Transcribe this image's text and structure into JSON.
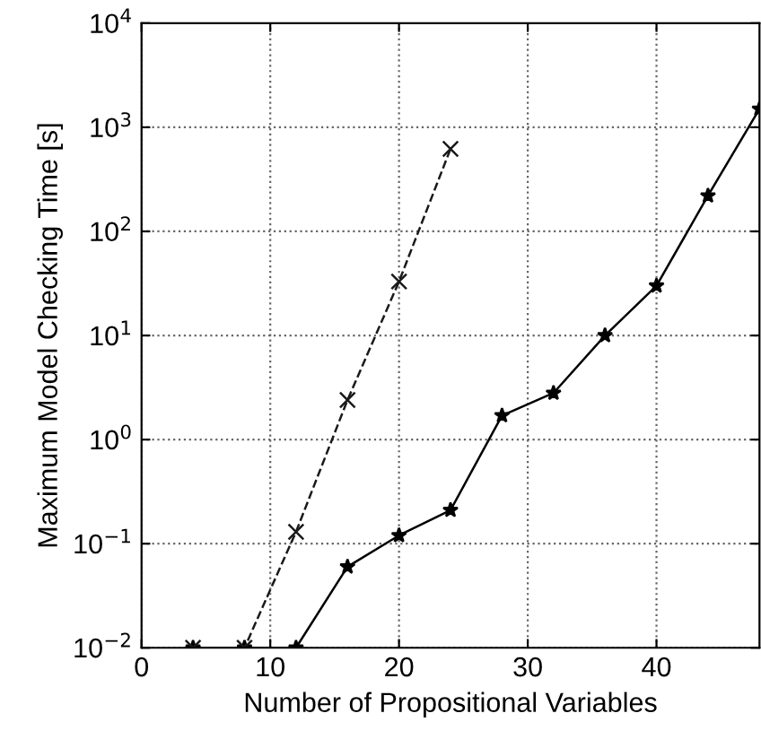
{
  "chart_data": {
    "type": "line",
    "xlabel": "Number of Propositional Variables",
    "ylabel": "Maximum Model Checking Time [s]",
    "log": "y",
    "grid": true,
    "xlim": [
      0,
      48
    ],
    "ylim": [
      0.01,
      10000
    ],
    "xticks": [
      0,
      10,
      20,
      30,
      40
    ],
    "yticks": [
      {
        "value": 0.01,
        "label": "10$^{−2}$"
      },
      {
        "value": 0.1,
        "label": "10$^{−1}$"
      },
      {
        "value": 1,
        "label": "10$^{0}$"
      },
      {
        "value": 10,
        "label": "10$^{1}$"
      },
      {
        "value": 100,
        "label": "10$^{2}$"
      },
      {
        "value": 1000,
        "label": "10$^{3}$"
      },
      {
        "value": 10000,
        "label": "10$^{4}$"
      }
    ],
    "series": [
      {
        "color": "#000000",
        "marker": "star",
        "line_style": "solid",
        "x": [
          4,
          8,
          12,
          16,
          20,
          24,
          28,
          32,
          36,
          40,
          44,
          48
        ],
        "values": [
          0.01,
          0.01,
          0.01,
          0.06,
          0.12,
          0.21,
          1.7,
          2.8,
          10,
          30,
          220,
          1500
        ]
      },
      {
        "color": "#1a1a1a",
        "marker": "cross",
        "line_style": "dashed",
        "x": [
          4,
          8,
          12,
          16,
          20,
          24
        ],
        "values": [
          0.01,
          0.01,
          0.13,
          2.4,
          33,
          620
        ]
      }
    ]
  }
}
